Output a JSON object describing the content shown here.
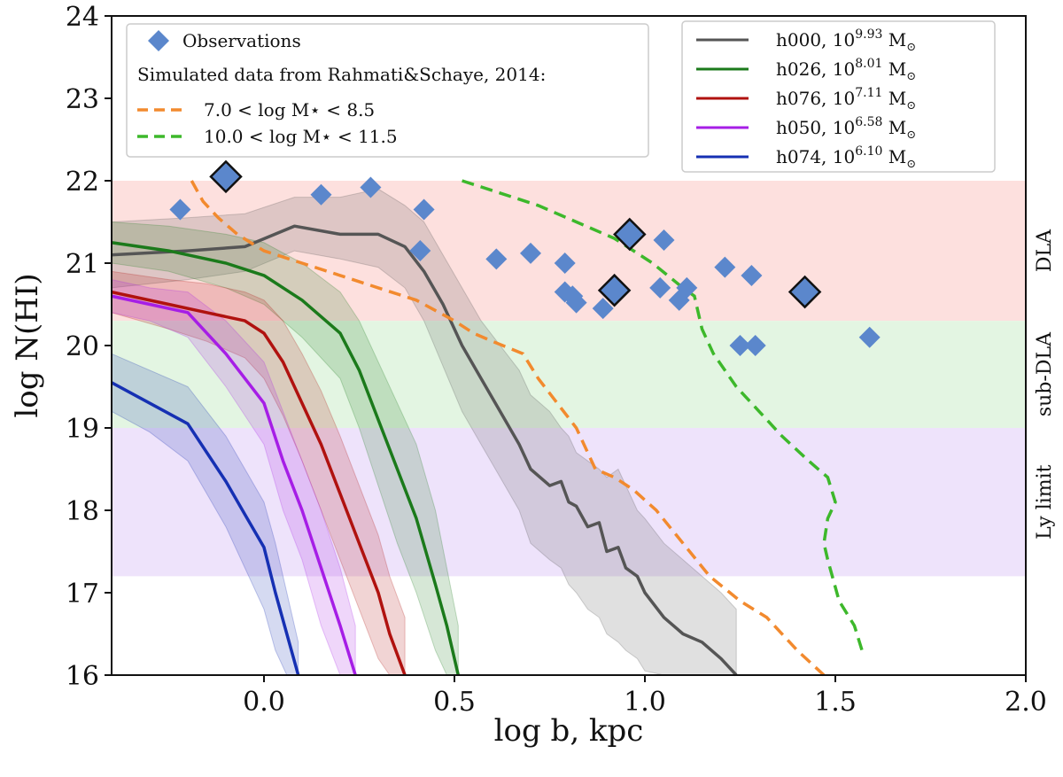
{
  "chart_data": {
    "type": "line",
    "xlabel": "log b, kpc",
    "ylabel": "log N(HI)",
    "xlim": [
      -0.4,
      2.0
    ],
    "ylim": [
      16,
      24
    ],
    "xticks": [
      0.0,
      0.5,
      1.0,
      1.5,
      2.0
    ],
    "xtick_labels": [
      "0.0",
      "0.5",
      "1.0",
      "1.5",
      "2.0"
    ],
    "yticks": [
      16,
      17,
      18,
      19,
      20,
      21,
      22,
      23,
      24
    ],
    "ytick_labels": [
      "16",
      "17",
      "18",
      "19",
      "20",
      "21",
      "22",
      "23",
      "24"
    ],
    "bands": [
      {
        "name": "DLA",
        "label": "DLA",
        "y0": 20.3,
        "y1": 22.0,
        "color": "#fde0de"
      },
      {
        "name": "sub-DLA",
        "label": "sub-DLA",
        "y0": 19.0,
        "y1": 20.3,
        "color": "#e3f5e2"
      },
      {
        "name": "Ly limit",
        "label": "Ly limit",
        "y0": 17.2,
        "y1": 19.0,
        "color": "#eee3fb"
      }
    ],
    "observations": {
      "label": "Observations",
      "color": "#5b87cc",
      "points": [
        {
          "x": -0.22,
          "y": 21.65,
          "big": false
        },
        {
          "x": -0.1,
          "y": 22.05,
          "big": true
        },
        {
          "x": 0.15,
          "y": 21.83,
          "big": false
        },
        {
          "x": 0.28,
          "y": 21.92,
          "big": false
        },
        {
          "x": 0.42,
          "y": 21.65,
          "big": false
        },
        {
          "x": 0.41,
          "y": 21.15,
          "big": false
        },
        {
          "x": 0.61,
          "y": 21.05,
          "big": false
        },
        {
          "x": 0.7,
          "y": 21.12,
          "big": false
        },
        {
          "x": 0.79,
          "y": 21.0,
          "big": false
        },
        {
          "x": 0.79,
          "y": 20.65,
          "big": false
        },
        {
          "x": 0.81,
          "y": 20.6,
          "big": false
        },
        {
          "x": 0.82,
          "y": 20.52,
          "big": false
        },
        {
          "x": 0.89,
          "y": 20.45,
          "big": false
        },
        {
          "x": 0.92,
          "y": 20.67,
          "big": true
        },
        {
          "x": 0.96,
          "y": 21.35,
          "big": true
        },
        {
          "x": 1.04,
          "y": 20.7,
          "big": false
        },
        {
          "x": 1.05,
          "y": 21.28,
          "big": false
        },
        {
          "x": 1.09,
          "y": 20.55,
          "big": false
        },
        {
          "x": 1.11,
          "y": 20.7,
          "big": false
        },
        {
          "x": 1.21,
          "y": 20.95,
          "big": false
        },
        {
          "x": 1.25,
          "y": 20.0,
          "big": false
        },
        {
          "x": 1.28,
          "y": 20.85,
          "big": false
        },
        {
          "x": 1.29,
          "y": 20.0,
          "big": false
        },
        {
          "x": 1.42,
          "y": 20.65,
          "big": true
        },
        {
          "x": 1.59,
          "y": 20.1,
          "big": false
        }
      ]
    },
    "legend_sim_title": "Simulated data from Rahmati&Schaye, 2014:",
    "dashed_series": [
      {
        "name": "7.0 < log M⋆ < 8.5",
        "color": "#f28a2e",
        "x": [
          -0.19,
          -0.16,
          -0.12,
          -0.07,
          0.0,
          0.1,
          0.2,
          0.3,
          0.4,
          0.5,
          0.55,
          0.6,
          0.68,
          0.72,
          0.77,
          0.82,
          0.87,
          0.92,
          0.97,
          1.03,
          1.1,
          1.17,
          1.25,
          1.32,
          1.4,
          1.47
        ],
        "y": [
          22.0,
          21.75,
          21.55,
          21.35,
          21.15,
          21.0,
          20.85,
          20.7,
          20.55,
          20.3,
          20.15,
          20.05,
          19.9,
          19.6,
          19.3,
          19.0,
          18.5,
          18.4,
          18.25,
          18.0,
          17.6,
          17.2,
          16.9,
          16.7,
          16.3,
          16.0
        ]
      },
      {
        "name": "10.0 < log M⋆ < 11.5",
        "color": "#3db82b",
        "x": [
          0.52,
          0.62,
          0.72,
          0.82,
          0.92,
          1.02,
          1.1,
          1.13,
          1.15,
          1.18,
          1.24,
          1.3,
          1.36,
          1.43,
          1.48,
          1.5,
          1.48,
          1.47,
          1.48,
          1.51,
          1.55,
          1.57
        ],
        "y": [
          22.0,
          21.85,
          21.7,
          21.5,
          21.3,
          21.0,
          20.7,
          20.6,
          20.2,
          19.9,
          19.5,
          19.2,
          18.9,
          18.6,
          18.4,
          18.1,
          17.9,
          17.6,
          17.4,
          16.9,
          16.6,
          16.3
        ]
      }
    ],
    "series": [
      {
        "name": "h000",
        "legend_base": "h000, 10",
        "legend_exp": "9.93",
        "legend_unit": " M",
        "legend_sub": "⊙",
        "color": "#555555",
        "x": [
          -0.4,
          -0.2,
          -0.05,
          0.08,
          0.2,
          0.3,
          0.37,
          0.42,
          0.47,
          0.52,
          0.57,
          0.62,
          0.67,
          0.7,
          0.75,
          0.78,
          0.8,
          0.82,
          0.85,
          0.88,
          0.9,
          0.93,
          0.95,
          0.98,
          1.0,
          1.05,
          1.1,
          1.15,
          1.2,
          1.24
        ],
        "y": [
          21.1,
          21.15,
          21.2,
          21.45,
          21.35,
          21.35,
          21.2,
          20.9,
          20.5,
          20.0,
          19.6,
          19.2,
          18.8,
          18.5,
          18.3,
          18.35,
          18.1,
          18.05,
          17.8,
          17.85,
          17.5,
          17.55,
          17.3,
          17.2,
          17.0,
          16.7,
          16.5,
          16.4,
          16.2,
          16.0
        ],
        "lower": [
          20.7,
          20.8,
          20.9,
          21.15,
          21.05,
          20.95,
          20.7,
          20.3,
          19.75,
          19.2,
          18.8,
          18.4,
          18.0,
          17.6,
          17.4,
          17.3,
          17.1,
          17.0,
          16.8,
          16.7,
          16.5,
          16.4,
          16.3,
          16.2,
          16.05,
          16.0,
          16.0,
          16.0,
          16.0,
          16.0
        ],
        "upper": [
          21.5,
          21.55,
          21.6,
          21.8,
          21.8,
          21.9,
          21.7,
          21.5,
          21.1,
          20.7,
          20.3,
          20.0,
          19.7,
          19.4,
          19.2,
          19.0,
          18.9,
          18.7,
          18.6,
          18.5,
          18.4,
          18.5,
          18.3,
          18.0,
          17.9,
          17.6,
          17.4,
          17.2,
          17.0,
          16.8
        ]
      },
      {
        "name": "h026",
        "legend_base": "h026, 10",
        "legend_exp": "8.01",
        "legend_unit": " M",
        "legend_sub": "⊙",
        "color": "#1b7a1b",
        "x": [
          -0.4,
          -0.25,
          -0.1,
          0.0,
          0.1,
          0.2,
          0.25,
          0.3,
          0.35,
          0.4,
          0.45,
          0.48,
          0.51
        ],
        "y": [
          21.25,
          21.15,
          21.0,
          20.85,
          20.55,
          20.15,
          19.7,
          19.1,
          18.5,
          17.9,
          17.1,
          16.6,
          16.0
        ],
        "lower": [
          21.0,
          20.9,
          20.7,
          20.5,
          20.1,
          19.6,
          19.0,
          18.3,
          17.6,
          17.0,
          16.3,
          16.0,
          16.0
        ],
        "upper": [
          21.5,
          21.45,
          21.35,
          21.25,
          21.0,
          20.65,
          20.3,
          19.8,
          19.3,
          18.8,
          18.0,
          17.3,
          16.6
        ]
      },
      {
        "name": "h076",
        "legend_base": "h076, 10",
        "legend_exp": "7.11",
        "legend_unit": " M",
        "legend_sub": "⊙",
        "color": "#b0120f",
        "x": [
          -0.4,
          -0.25,
          -0.15,
          -0.05,
          0.0,
          0.05,
          0.1,
          0.15,
          0.2,
          0.25,
          0.3,
          0.33,
          0.37
        ],
        "y": [
          20.65,
          20.5,
          20.4,
          20.3,
          20.15,
          19.8,
          19.3,
          18.8,
          18.2,
          17.6,
          17.0,
          16.5,
          16.0
        ],
        "lower": [
          20.4,
          20.2,
          20.05,
          19.85,
          19.6,
          19.15,
          18.6,
          18.0,
          17.4,
          16.8,
          16.2,
          16.0,
          16.0
        ],
        "upper": [
          20.9,
          20.8,
          20.75,
          20.65,
          20.55,
          20.3,
          19.9,
          19.45,
          18.9,
          18.3,
          17.7,
          17.2,
          16.7
        ]
      },
      {
        "name": "h050",
        "legend_base": "h050, 10",
        "legend_exp": "6.58",
        "legend_unit": " M",
        "legend_sub": "⊙",
        "color": "#a61ee6",
        "x": [
          -0.4,
          -0.3,
          -0.2,
          -0.1,
          0.0,
          0.05,
          0.1,
          0.15,
          0.2,
          0.24
        ],
        "y": [
          20.6,
          20.5,
          20.4,
          19.9,
          19.3,
          18.6,
          18.0,
          17.3,
          16.6,
          16.0
        ],
        "lower": [
          20.4,
          20.3,
          20.1,
          19.5,
          18.8,
          18.0,
          17.4,
          16.6,
          16.0,
          16.0
        ],
        "upper": [
          20.8,
          20.7,
          20.65,
          20.3,
          19.8,
          19.2,
          18.6,
          18.0,
          17.3,
          16.6
        ]
      },
      {
        "name": "h074",
        "legend_base": "h074, 10",
        "legend_exp": "6.10",
        "legend_unit": " M",
        "legend_sub": "⊙",
        "color": "#1630b3",
        "x": [
          -0.4,
          -0.3,
          -0.2,
          -0.15,
          -0.1,
          -0.05,
          0.0,
          0.03,
          0.06,
          0.09
        ],
        "y": [
          19.55,
          19.3,
          19.05,
          18.7,
          18.35,
          17.95,
          17.55,
          17.0,
          16.5,
          16.0
        ],
        "lower": [
          19.2,
          18.95,
          18.6,
          18.2,
          17.8,
          17.3,
          16.8,
          16.3,
          16.0,
          16.0
        ],
        "upper": [
          19.9,
          19.7,
          19.5,
          19.2,
          18.9,
          18.5,
          18.1,
          17.6,
          17.0,
          16.4
        ]
      }
    ]
  }
}
